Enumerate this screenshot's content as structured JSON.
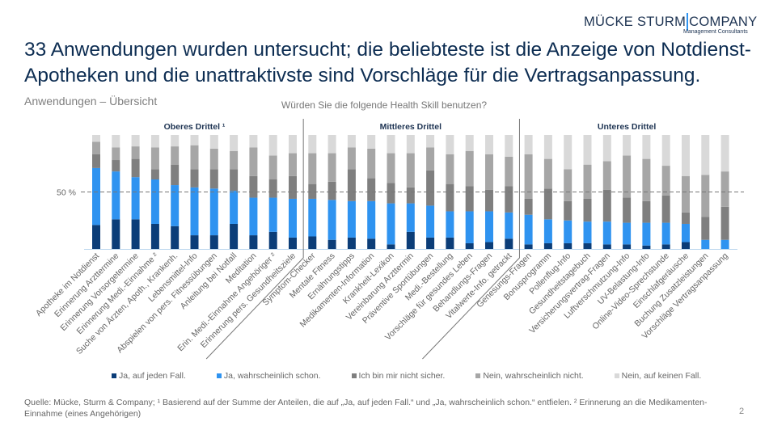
{
  "logo": {
    "main_left": "MÜCKE STURM",
    "main_right": "COMPANY",
    "sub": "Management Consultants"
  },
  "title": "33 Anwendungen wurden untersucht; die beliebteste ist die Anzeige von Notdienst-Apotheken und die unattraktivste sind Vorschläge für die Vertragsanpassung.",
  "subtitle": "Anwendungen – Übersicht",
  "footnote": "Quelle: Mücke, Sturm & Company; ¹ Basierend auf der Summe der Anteilen, die auf „Ja, auf jeden Fall.“ und „Ja, wahrscheinlich schon.“ entfielen. ² Erinnerung an die Medikamenten-Einnahme (eines Angehörigen)",
  "page_number": "2",
  "chart_data": {
    "type": "bar",
    "stacked": true,
    "percent": true,
    "title": "Würden Sie die folgende Health Skill benutzen?",
    "ylim": [
      0,
      100
    ],
    "reference_line": {
      "value": 50,
      "label": "50 %"
    },
    "sections": [
      {
        "label": "Oberes Drittel ¹",
        "start": 0,
        "end": 10
      },
      {
        "label": "Mittleres Drittel",
        "start": 11,
        "end": 21
      },
      {
        "label": "Unteres Drittel",
        "start": 22,
        "end": 32
      }
    ],
    "categories": [
      "Apotheke im Notdienst",
      "Erinnerung Arzttermine",
      "Erinnerung Vorsorgetermine",
      "Erinnerung Medi.-Einnahme ²",
      "Suche von Ärzten, Apoth., Krankenh.",
      "Lebensmittel-Info",
      "Abspielen von pers. Fitnessübungen",
      "Anleitung bei Notfall",
      "Meditation",
      "Erin. Medi.-Einnahme Angehöriger ²",
      "Erinnerung pers. Gesundheitsziele",
      "Symptom-Checker",
      "Mentale Fitness",
      "Ernährungstipps",
      "Medikamenten-Information",
      "Krankheit-Lexikon",
      "Vereinbarung Arzttermin",
      "Präventive Sportübungen",
      "Medi.-Bestellung",
      "Vorschläge für gesundes Leben",
      "Behandlungs-Fragen",
      "Vitalwerte-Info. getrackt",
      "Genesungs-Fragen",
      "Bonusprogramm",
      "Pollenflug-Info",
      "Gesundheitstagebuch",
      "Versicherungsvertrag-Fragen",
      "Luftverschmutzung-Info",
      "UV-Belastung-Info",
      "Online-Video-Sprechstunde",
      "Einschlafgeräusche",
      "Buchung Zusatzleistungen",
      "Vorschläge Vertragsanpassung"
    ],
    "series": [
      {
        "name": "Ja, auf jeden Fall.",
        "color": "#0b3d78",
        "values": [
          21,
          26,
          26,
          22,
          20,
          12,
          12,
          22,
          12,
          15,
          10,
          11,
          8,
          10,
          9,
          4,
          15,
          10,
          10,
          5,
          6,
          9,
          4,
          5,
          5,
          5,
          4,
          4,
          3,
          4,
          6,
          0,
          0
        ]
      },
      {
        "name": "Ja, wahrscheinlich schon.",
        "color": "#2f93f0",
        "values": [
          50,
          42,
          37,
          39,
          36,
          42,
          41,
          29,
          33,
          30,
          34,
          33,
          35,
          32,
          33,
          36,
          25,
          28,
          23,
          28,
          27,
          23,
          26,
          21,
          20,
          19,
          20,
          19,
          20,
          19,
          16,
          8,
          8
        ]
      },
      {
        "name": "Ich bin mir nicht sicher.",
        "color": "#7f7f7f",
        "values": [
          12,
          10,
          16,
          9,
          18,
          16,
          17,
          19,
          19,
          16,
          20,
          13,
          16,
          28,
          20,
          18,
          14,
          31,
          24,
          22,
          19,
          23,
          14,
          27,
          17,
          20,
          28,
          22,
          19,
          24,
          10,
          20,
          29
        ]
      },
      {
        "name": "Nein, wahrscheinlich nicht.",
        "color": "#a6a6a6",
        "values": [
          11,
          11,
          11,
          19,
          16,
          21,
          18,
          16,
          25,
          21,
          20,
          27,
          25,
          19,
          26,
          26,
          30,
          20,
          26,
          31,
          31,
          26,
          39,
          26,
          28,
          30,
          25,
          37,
          37,
          26,
          32,
          37,
          31
        ]
      },
      {
        "name": "Nein, auf keinen Fall.",
        "color": "#d9d9d9",
        "values": [
          6,
          11,
          10,
          11,
          10,
          9,
          12,
          14,
          11,
          18,
          16,
          16,
          16,
          11,
          12,
          16,
          16,
          11,
          17,
          14,
          17,
          19,
          17,
          21,
          30,
          26,
          23,
          18,
          21,
          27,
          36,
          35,
          32
        ]
      }
    ]
  }
}
